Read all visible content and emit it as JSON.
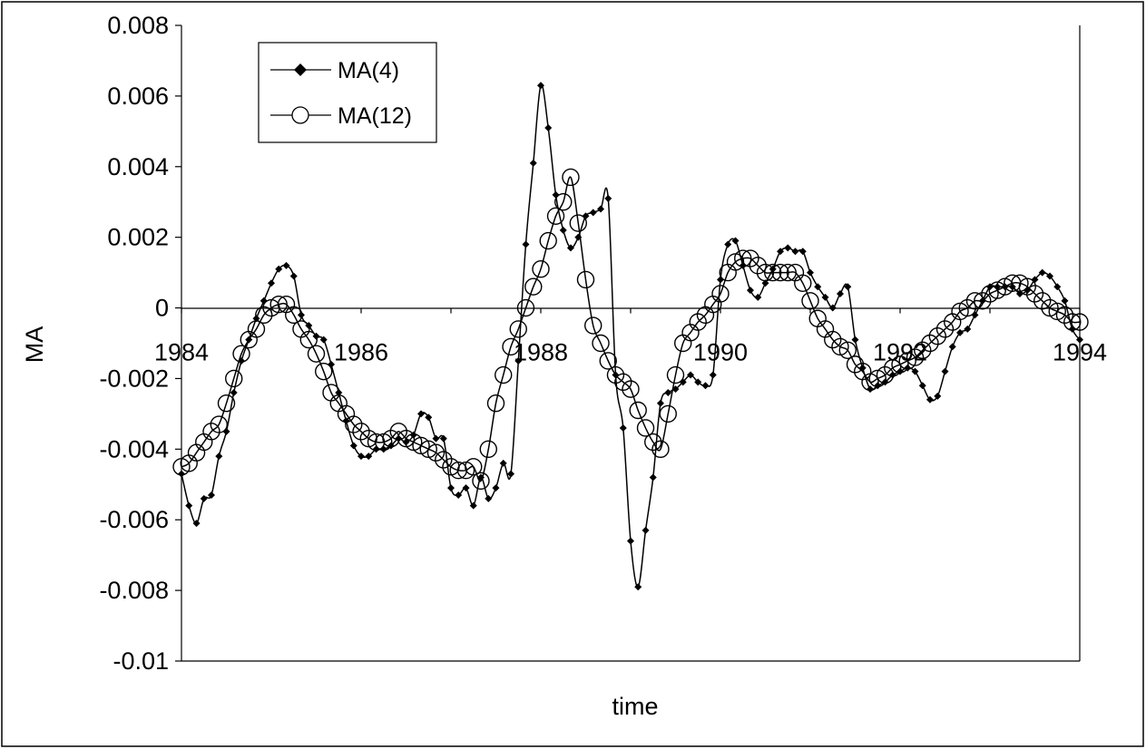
{
  "chart_data": {
    "type": "line",
    "title": "",
    "xlabel": "time",
    "ylabel": "MA",
    "xlim": [
      1984,
      1994
    ],
    "ylim": [
      -0.01,
      0.008
    ],
    "x_ticks": [
      "1984",
      "1986",
      "1988",
      "1990",
      "1992",
      "1994"
    ],
    "y_ticks": [
      "0.008",
      "0.006",
      "0.004",
      "0.002",
      "0",
      "-0.002",
      "-0.004",
      "-0.006",
      "-0.008",
      "-0.01"
    ],
    "grid": false,
    "legend": "top-left",
    "series": [
      {
        "name": "MA(4)",
        "marker": "diamond",
        "color": "#000000",
        "x": [
          1984.0,
          1984.083,
          1984.167,
          1984.25,
          1984.333,
          1984.417,
          1984.5,
          1984.583,
          1984.667,
          1984.75,
          1984.833,
          1984.917,
          1985.0,
          1985.083,
          1985.167,
          1985.25,
          1985.333,
          1985.417,
          1985.5,
          1985.583,
          1985.667,
          1985.75,
          1985.833,
          1985.917,
          1986.0,
          1986.083,
          1986.167,
          1986.25,
          1986.333,
          1986.417,
          1986.5,
          1986.583,
          1986.667,
          1986.75,
          1986.833,
          1986.917,
          1987.0,
          1987.083,
          1987.167,
          1987.25,
          1987.333,
          1987.417,
          1987.5,
          1987.583,
          1987.667,
          1987.75,
          1987.833,
          1987.917,
          1988.0,
          1988.083,
          1988.167,
          1988.25,
          1988.333,
          1988.417,
          1988.5,
          1988.583,
          1988.667,
          1988.75,
          1988.833,
          1988.917,
          1989.0,
          1989.083,
          1989.167,
          1989.25,
          1989.333,
          1989.417,
          1989.5,
          1989.583,
          1989.667,
          1989.75,
          1989.833,
          1989.917,
          1990.0,
          1990.083,
          1990.167,
          1990.25,
          1990.333,
          1990.417,
          1990.5,
          1990.583,
          1990.667,
          1990.75,
          1990.833,
          1990.917,
          1991.0,
          1991.083,
          1991.167,
          1991.25,
          1991.333,
          1991.417,
          1991.5,
          1991.583,
          1991.667,
          1991.75,
          1991.833,
          1991.917,
          1992.0,
          1992.083,
          1992.167,
          1992.25,
          1992.333,
          1992.417,
          1992.5,
          1992.583,
          1992.667,
          1992.75,
          1992.833,
          1992.917,
          1993.0,
          1993.083,
          1993.167,
          1993.25,
          1993.333,
          1993.417,
          1993.5,
          1993.583,
          1993.667,
          1993.75,
          1993.833,
          1993.917,
          1994.0
        ],
        "values": [
          -0.0047,
          -0.0056,
          -0.0061,
          -0.0054,
          -0.0053,
          -0.0042,
          -0.0035,
          -0.0024,
          -0.0015,
          -0.0009,
          -0.0003,
          0.0002,
          0.0007,
          0.0011,
          0.0012,
          0.0009,
          -0.0002,
          -0.0005,
          -0.0008,
          -0.0009,
          -0.0016,
          -0.0024,
          -0.0032,
          -0.0039,
          -0.0042,
          -0.0042,
          -0.004,
          -0.004,
          -0.0039,
          -0.0037,
          -0.0038,
          -0.0036,
          -0.003,
          -0.0031,
          -0.0037,
          -0.0037,
          -0.0051,
          -0.0053,
          -0.0051,
          -0.0056,
          -0.0048,
          -0.0054,
          -0.0051,
          -0.0044,
          -0.0047,
          -0.0015,
          0.0018,
          0.0041,
          0.0063,
          0.0051,
          0.0032,
          0.0022,
          0.0017,
          0.002,
          0.0026,
          0.0027,
          0.0028,
          0.0031,
          -0.0019,
          -0.0034,
          -0.0066,
          -0.0079,
          -0.0063,
          -0.0048,
          -0.0027,
          -0.0024,
          -0.0023,
          -0.0021,
          -0.0019,
          -0.0021,
          -0.0022,
          -0.0019,
          0.0008,
          0.0018,
          0.0019,
          0.0012,
          0.0005,
          0.0003,
          0.0007,
          0.0011,
          0.0016,
          0.0017,
          0.0016,
          0.0016,
          0.001,
          0.0006,
          0.0003,
          0.0,
          0.0004,
          0.0006,
          -0.0009,
          -0.0017,
          -0.0023,
          -0.0022,
          -0.0021,
          -0.0019,
          -0.0018,
          -0.0017,
          -0.0018,
          -0.0022,
          -0.0026,
          -0.0025,
          -0.0018,
          -0.0011,
          -0.0007,
          -0.0006,
          -0.0002,
          0.0002,
          0.0006,
          0.0006,
          0.0006,
          0.0006,
          0.0004,
          0.0005,
          0.0008,
          0.001,
          0.0009,
          0.0006,
          0.0002,
          -0.0006,
          -0.0009
        ]
      },
      {
        "name": "MA(12)",
        "marker": "circle",
        "color": "#000000",
        "x": [
          1984.0,
          1984.083,
          1984.167,
          1984.25,
          1984.333,
          1984.417,
          1984.5,
          1984.583,
          1984.667,
          1984.75,
          1984.833,
          1984.917,
          1985.0,
          1985.083,
          1985.167,
          1985.25,
          1985.333,
          1985.417,
          1985.5,
          1985.583,
          1985.667,
          1985.75,
          1985.833,
          1985.917,
          1986.0,
          1986.083,
          1986.167,
          1986.25,
          1986.333,
          1986.417,
          1986.5,
          1986.583,
          1986.667,
          1986.75,
          1986.833,
          1986.917,
          1987.0,
          1987.083,
          1987.167,
          1987.25,
          1987.333,
          1987.417,
          1987.5,
          1987.583,
          1987.667,
          1987.75,
          1987.833,
          1987.917,
          1988.0,
          1988.083,
          1988.167,
          1988.25,
          1988.333,
          1988.417,
          1988.5,
          1988.583,
          1988.667,
          1988.75,
          1988.833,
          1988.917,
          1989.0,
          1989.083,
          1989.167,
          1989.25,
          1989.333,
          1989.417,
          1989.5,
          1989.583,
          1989.667,
          1989.75,
          1989.833,
          1989.917,
          1990.0,
          1990.083,
          1990.167,
          1990.25,
          1990.333,
          1990.417,
          1990.5,
          1990.583,
          1990.667,
          1990.75,
          1990.833,
          1990.917,
          1991.0,
          1991.083,
          1991.167,
          1991.25,
          1991.333,
          1991.417,
          1991.5,
          1991.583,
          1991.667,
          1991.75,
          1991.833,
          1991.917,
          1992.0,
          1992.083,
          1992.167,
          1992.25,
          1992.333,
          1992.417,
          1992.5,
          1992.583,
          1992.667,
          1992.75,
          1992.833,
          1992.917,
          1993.0,
          1993.083,
          1993.167,
          1993.25,
          1993.333,
          1993.417,
          1993.5,
          1993.583,
          1993.667,
          1993.75,
          1993.833,
          1993.917,
          1994.0
        ],
        "values": [
          -0.0045,
          -0.0044,
          -0.0041,
          -0.0038,
          -0.0035,
          -0.0033,
          -0.0027,
          -0.002,
          -0.0013,
          -0.0009,
          -0.0006,
          -0.0002,
          0.0,
          0.0001,
          0.0001,
          -0.0002,
          -0.0006,
          -0.0009,
          -0.0013,
          -0.0018,
          -0.0024,
          -0.0027,
          -0.003,
          -0.0033,
          -0.0035,
          -0.0037,
          -0.0038,
          -0.0038,
          -0.0037,
          -0.0035,
          -0.0037,
          -0.0038,
          -0.0039,
          -0.004,
          -0.0041,
          -0.0043,
          -0.0045,
          -0.0046,
          -0.0046,
          -0.0045,
          -0.0049,
          -0.004,
          -0.0027,
          -0.0019,
          -0.0011,
          -0.0006,
          0.0,
          0.0006,
          0.0011,
          0.0019,
          0.0026,
          0.003,
          0.0037,
          0.0024,
          0.0008,
          -0.0005,
          -0.001,
          -0.0015,
          -0.0019,
          -0.0021,
          -0.0023,
          -0.0029,
          -0.0034,
          -0.0038,
          -0.004,
          -0.003,
          -0.0019,
          -0.001,
          -0.0007,
          -0.0004,
          -0.0002,
          0.0001,
          0.0004,
          0.001,
          0.0013,
          0.0014,
          0.0014,
          0.0012,
          0.001,
          0.001,
          0.001,
          0.001,
          0.001,
          0.0007,
          0.0002,
          -0.0003,
          -0.0006,
          -0.0009,
          -0.0011,
          -0.0012,
          -0.0016,
          -0.0018,
          -0.0021,
          -0.002,
          -0.0019,
          -0.0017,
          -0.0016,
          -0.0015,
          -0.0014,
          -0.0012,
          -0.001,
          -0.0008,
          -0.0006,
          -0.0004,
          -0.0001,
          0.0,
          0.0002,
          0.0002,
          0.0004,
          0.0005,
          0.0006,
          0.0007,
          0.0007,
          0.0006,
          0.0004,
          0.0002,
          0.0,
          -0.0001,
          -0.0002,
          -0.0004,
          -0.0004
        ]
      }
    ]
  }
}
